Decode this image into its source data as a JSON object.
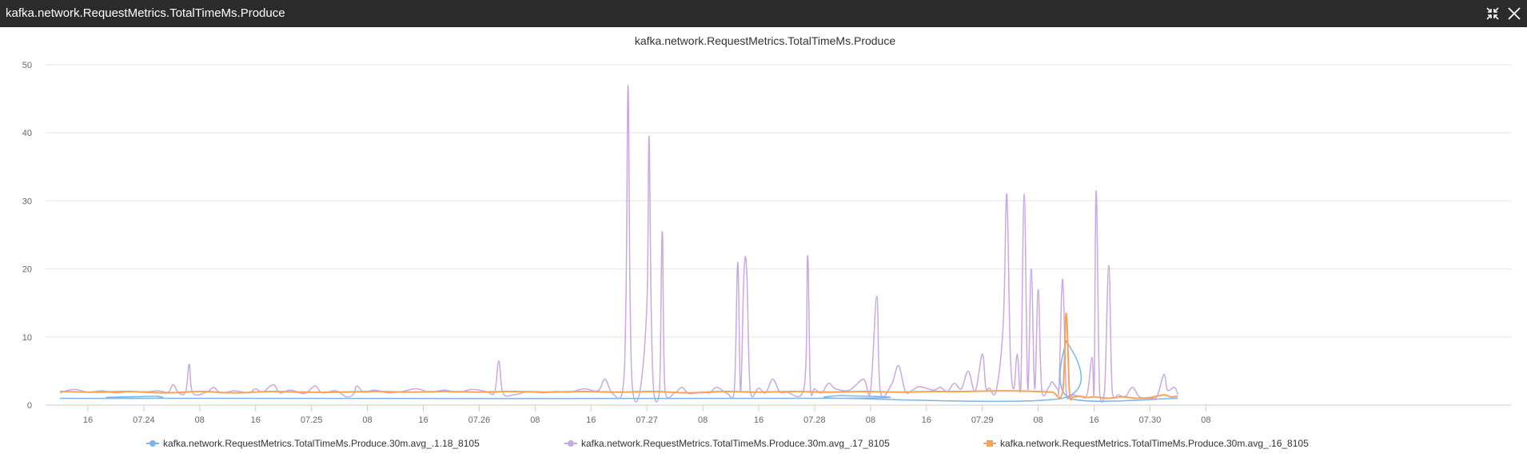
{
  "window": {
    "title": "kafka.network.RequestMetrics.TotalTimeMs.Produce",
    "buttons": [
      {
        "name": "collapse-icon"
      },
      {
        "name": "close-icon"
      }
    ]
  },
  "chart_data": {
    "type": "line",
    "title": "kafka.network.RequestMetrics.TotalTimeMs.Produce",
    "xlabel": "",
    "ylabel": "",
    "ylim": [
      0,
      50
    ],
    "yticks": [
      0,
      10,
      20,
      30,
      40,
      50
    ],
    "xlim": [
      0,
      160
    ],
    "x_unit": "hours after 07.23 12:00",
    "x_ticks": [
      {
        "x": 4,
        "label": "16"
      },
      {
        "x": 12,
        "label": "07.24"
      },
      {
        "x": 20,
        "label": "08"
      },
      {
        "x": 28,
        "label": "16"
      },
      {
        "x": 36,
        "label": "07.25"
      },
      {
        "x": 44,
        "label": "08"
      },
      {
        "x": 52,
        "label": "16"
      },
      {
        "x": 60,
        "label": "07.26"
      },
      {
        "x": 68,
        "label": "08"
      },
      {
        "x": 76,
        "label": "16"
      },
      {
        "x": 84,
        "label": "07.27"
      },
      {
        "x": 92,
        "label": "08"
      },
      {
        "x": 100,
        "label": "16"
      },
      {
        "x": 108,
        "label": "07.28"
      },
      {
        "x": 116,
        "label": "08"
      },
      {
        "x": 124,
        "label": "16"
      },
      {
        "x": 132,
        "label": "07.29"
      },
      {
        "x": 140,
        "label": "08"
      },
      {
        "x": 148,
        "label": "16"
      },
      {
        "x": 156,
        "label": "07.30"
      },
      {
        "x": 164,
        "label": "08"
      }
    ],
    "grid": true,
    "legend_position": "bottom",
    "series": [
      {
        "name": "kafka.network.RequestMetrics.TotalTimeMs.Produce.30m.avg_.1.18_8105",
        "color": "#7cb5ec",
        "points": [
          [
            0,
            1.0
          ],
          [
            13.5,
            1.0
          ],
          [
            14.0,
            1.3
          ],
          [
            14.5,
            1.0
          ],
          [
            111,
            1.0
          ],
          [
            111.5,
            1.4
          ],
          [
            112,
            1.0
          ],
          [
            143.5,
            1.0
          ],
          [
            144,
            9.5
          ],
          [
            144.5,
            1.0
          ],
          [
            160,
            1.0
          ]
        ]
      },
      {
        "name": "kafka.network.RequestMetrics.TotalTimeMs.Produce.30m.avg_.17_8105",
        "color": "#c9a8e3",
        "points": [
          [
            0,
            1.8
          ],
          [
            2,
            2.3
          ],
          [
            4,
            1.9
          ],
          [
            6,
            2.1
          ],
          [
            8,
            1.8
          ],
          [
            10,
            2.0
          ],
          [
            12,
            1.9
          ],
          [
            14,
            2.1
          ],
          [
            15.5,
            1.9
          ],
          [
            16.2,
            3.0
          ],
          [
            17,
            1.8
          ],
          [
            18,
            2.0
          ],
          [
            18.5,
            6.0
          ],
          [
            19,
            1.8
          ],
          [
            21,
            1.9
          ],
          [
            22,
            2.6
          ],
          [
            23,
            1.8
          ],
          [
            25,
            2.1
          ],
          [
            27,
            1.8
          ],
          [
            28,
            2.4
          ],
          [
            29,
            1.9
          ],
          [
            30.5,
            3.0
          ],
          [
            31.5,
            1.8
          ],
          [
            33,
            2.2
          ],
          [
            35,
            1.7
          ],
          [
            36.5,
            2.8
          ],
          [
            37.5,
            1.8
          ],
          [
            39.5,
            2.1
          ],
          [
            41,
            1.2
          ],
          [
            42,
            1.6
          ],
          [
            42.5,
            2.8
          ],
          [
            43.5,
            1.9
          ],
          [
            45,
            2.2
          ],
          [
            47,
            1.8
          ],
          [
            49,
            2.0
          ],
          [
            51,
            2.4
          ],
          [
            53,
            1.9
          ],
          [
            55,
            2.2
          ],
          [
            57,
            1.9
          ],
          [
            59,
            2.3
          ],
          [
            61,
            2.0
          ],
          [
            62.2,
            1.9
          ],
          [
            62.8,
            6.5
          ],
          [
            63.4,
            1.8
          ],
          [
            65,
            1.5
          ],
          [
            67,
            2.0
          ],
          [
            69,
            1.8
          ],
          [
            71,
            2.0
          ],
          [
            73,
            1.9
          ],
          [
            75,
            2.4
          ],
          [
            77,
            2.1
          ],
          [
            78,
            3.8
          ],
          [
            79,
            1.8
          ],
          [
            80.5,
            2.0
          ],
          [
            81,
            15
          ],
          [
            81.3,
            47
          ],
          [
            81.6,
            15
          ],
          [
            82,
            1.8
          ],
          [
            83,
            2.0
          ],
          [
            84,
            15
          ],
          [
            84.3,
            39.5
          ],
          [
            84.6,
            15
          ],
          [
            85,
            1.8
          ],
          [
            85.8,
            2.0
          ],
          [
            86.2,
            25.5
          ],
          [
            86.6,
            2.0
          ],
          [
            88,
            1.8
          ],
          [
            89,
            2.6
          ],
          [
            90,
            1.7
          ],
          [
            92,
            1.9
          ],
          [
            93,
            1.8
          ],
          [
            94,
            2.6
          ],
          [
            95.5,
            1.7
          ],
          [
            96.5,
            2.0
          ],
          [
            97.0,
            21
          ],
          [
            97.4,
            2.0
          ],
          [
            97.9,
            19.5
          ],
          [
            98.3,
            19.5
          ],
          [
            98.8,
            2.0
          ],
          [
            100,
            2.5
          ],
          [
            101,
            1.8
          ],
          [
            102,
            3.8
          ],
          [
            103,
            2.0
          ],
          [
            104,
            1.9
          ],
          [
            106.5,
            2.5
          ],
          [
            107.0,
            22
          ],
          [
            107.4,
            2.5
          ],
          [
            108,
            2.4
          ],
          [
            109,
            1.8
          ],
          [
            110,
            3.2
          ],
          [
            111,
            2.4
          ],
          [
            113,
            2.2
          ],
          [
            115,
            3.8
          ],
          [
            116,
            2.0
          ],
          [
            116.9,
            16
          ],
          [
            117.4,
            2.0
          ],
          [
            119,
            3.0
          ],
          [
            120,
            5.8
          ],
          [
            121,
            2.0
          ],
          [
            122,
            2.2
          ],
          [
            123,
            2.7
          ],
          [
            125,
            2.2
          ],
          [
            126,
            2.6
          ],
          [
            127,
            2.0
          ],
          [
            128,
            3.2
          ],
          [
            129,
            2.4
          ],
          [
            130,
            5.0
          ],
          [
            131,
            2.0
          ],
          [
            132,
            7.5
          ],
          [
            132.5,
            2.6
          ],
          [
            133,
            2.5
          ],
          [
            134,
            2.2
          ],
          [
            135,
            12
          ],
          [
            135.5,
            31
          ],
          [
            136,
            8
          ],
          [
            136.5,
            2.4
          ],
          [
            137,
            7.5
          ],
          [
            137.5,
            2.4
          ],
          [
            138,
            31
          ],
          [
            138.5,
            2.4
          ],
          [
            139,
            20
          ],
          [
            139.5,
            2.4
          ],
          [
            140,
            17
          ],
          [
            140.5,
            2.4
          ],
          [
            141.5,
            2.6
          ],
          [
            142,
            3.4
          ],
          [
            142.8,
            2.3
          ],
          [
            143,
            3.0
          ],
          [
            143.5,
            18.5
          ],
          [
            144,
            2.0
          ],
          [
            144.5,
            1.2
          ],
          [
            145,
            1.5
          ],
          [
            146,
            1.3
          ],
          [
            147,
            1.6
          ],
          [
            147.7,
            7.0
          ],
          [
            148,
            1.6
          ],
          [
            148.3,
            31.5
          ],
          [
            148.8,
            1.6
          ],
          [
            149.5,
            2.0
          ],
          [
            150.1,
            20.5
          ],
          [
            150.6,
            2.0
          ],
          [
            151.5,
            1.5
          ],
          [
            152.5,
            1.3
          ],
          [
            153.5,
            2.6
          ],
          [
            154.5,
            1.2
          ],
          [
            156,
            1.0
          ],
          [
            157,
            1.3
          ],
          [
            158,
            4.5
          ],
          [
            158.5,
            2.2
          ],
          [
            159.5,
            2.6
          ],
          [
            160,
            1.5
          ]
        ]
      },
      {
        "name": "kafka.network.RequestMetrics.TotalTimeMs.Produce.30m.avg_.16_8105",
        "color": "#f7a35c",
        "points": [
          [
            0,
            2.0
          ],
          [
            5,
            1.9
          ],
          [
            10,
            2.0
          ],
          [
            15,
            1.8
          ],
          [
            20,
            2.0
          ],
          [
            25,
            1.8
          ],
          [
            30,
            2.0
          ],
          [
            35,
            1.9
          ],
          [
            40,
            1.9
          ],
          [
            45,
            2.0
          ],
          [
            50,
            1.9
          ],
          [
            55,
            2.0
          ],
          [
            60,
            1.9
          ],
          [
            65,
            2.0
          ],
          [
            70,
            1.9
          ],
          [
            75,
            2.0
          ],
          [
            80,
            1.9
          ],
          [
            85,
            2.0
          ],
          [
            90,
            1.8
          ],
          [
            95,
            2.0
          ],
          [
            100,
            1.9
          ],
          [
            105,
            2.0
          ],
          [
            110,
            1.9
          ],
          [
            115,
            2.0
          ],
          [
            120,
            1.9
          ],
          [
            125,
            2.0
          ],
          [
            130,
            2.0
          ],
          [
            135,
            2.1
          ],
          [
            140,
            2.0
          ],
          [
            142,
            1.9
          ],
          [
            143.5,
            2.0
          ],
          [
            144,
            13.5
          ],
          [
            144.5,
            1.5
          ],
          [
            145,
            1.2
          ],
          [
            146,
            1.3
          ],
          [
            147,
            1.1
          ],
          [
            148,
            1.2
          ],
          [
            150,
            1.0
          ],
          [
            152,
            1.2
          ],
          [
            154,
            1.0
          ],
          [
            156,
            1.1
          ],
          [
            158,
            1.5
          ],
          [
            159,
            1.2
          ],
          [
            160,
            1.3
          ]
        ]
      }
    ]
  }
}
